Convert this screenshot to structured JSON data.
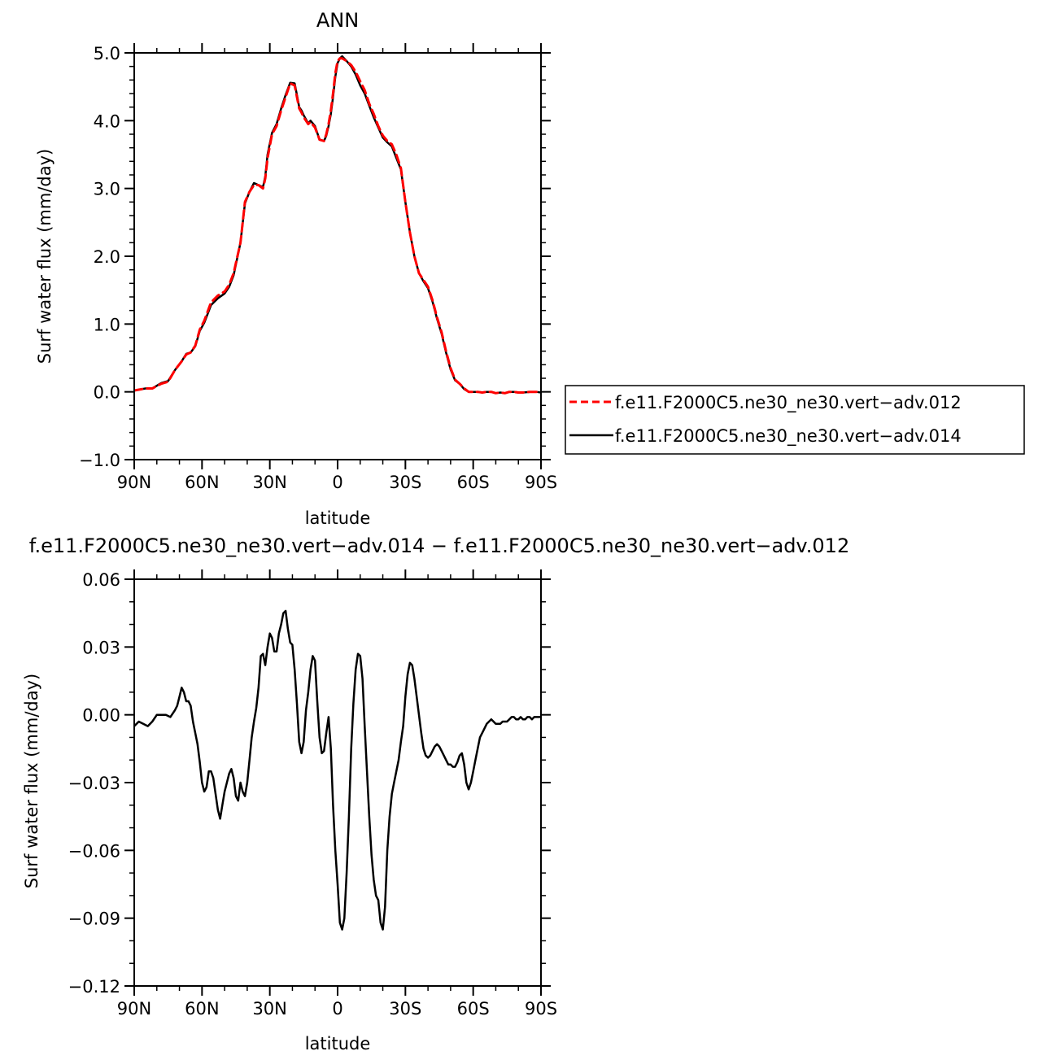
{
  "chart_data": [
    {
      "type": "line",
      "title": "ANN",
      "xlabel": "latitude",
      "ylabel": "Surf water flux (mm/day)",
      "xlim": [
        90,
        -90
      ],
      "ylim": [
        -1.0,
        5.0
      ],
      "x_tick_values": [
        90,
        60,
        30,
        0,
        -30,
        -60,
        -90
      ],
      "x_tick_labels": [
        "90N",
        "60N",
        "30N",
        "0",
        "30S",
        "60S",
        "90S"
      ],
      "y_tick_values": [
        -1.0,
        0.0,
        1.0,
        2.0,
        3.0,
        4.0,
        5.0
      ],
      "y_tick_labels": [
        "−1.0",
        "0.0",
        "1.0",
        "2.0",
        "3.0",
        "4.0",
        "5.0"
      ],
      "legend_position": "right",
      "series": [
        {
          "name": "f.e11.F2000C5.ne30_ne30.vert−adv.012",
          "color": "#ff0000",
          "dash": "dashed",
          "x": [
            90,
            85,
            82,
            78,
            75,
            72,
            69,
            67,
            65,
            63,
            61,
            59,
            56,
            53,
            50,
            48,
            46,
            43,
            41,
            39,
            37,
            35,
            33,
            32,
            31,
            29,
            27,
            25,
            23,
            21,
            19,
            18,
            17,
            16,
            15,
            14,
            13,
            12,
            10,
            8,
            6,
            5,
            4,
            3,
            2,
            1,
            0,
            -1,
            -2,
            -4,
            -6,
            -8,
            -10,
            -12,
            -14,
            -16,
            -18,
            -20,
            -22,
            -24,
            -26,
            -28,
            -30,
            -32,
            -34,
            -36,
            -38,
            -40,
            -42,
            -44,
            -46,
            -48,
            -50,
            -52,
            -54,
            -56,
            -58,
            -60,
            -62,
            -64,
            -66,
            -68,
            -70,
            -72,
            -74,
            -76,
            -78,
            -80,
            -82,
            -85,
            -88,
            -90
          ],
          "y": [
            0.02,
            0.05,
            0.05,
            0.12,
            0.15,
            0.32,
            0.45,
            0.55,
            0.58,
            0.68,
            0.92,
            1.05,
            1.32,
            1.42,
            1.48,
            1.58,
            1.75,
            2.2,
            2.8,
            2.95,
            3.05,
            3.05,
            3.0,
            3.15,
            3.45,
            3.8,
            3.92,
            4.15,
            4.35,
            4.55,
            4.52,
            4.35,
            4.18,
            4.12,
            4.05,
            4.0,
            3.95,
            3.98,
            3.9,
            3.72,
            3.7,
            3.8,
            3.95,
            4.15,
            4.4,
            4.7,
            4.88,
            4.92,
            4.92,
            4.88,
            4.82,
            4.72,
            4.58,
            4.45,
            4.25,
            4.1,
            3.92,
            3.78,
            3.7,
            3.65,
            3.5,
            3.3,
            2.8,
            2.35,
            2.0,
            1.75,
            1.65,
            1.55,
            1.35,
            1.1,
            0.88,
            0.6,
            0.35,
            0.18,
            0.12,
            0.05,
            0.0,
            0.0,
            0.0,
            -0.01,
            0.0,
            0.0,
            -0.02,
            -0.01,
            -0.02,
            0.0,
            0.0,
            -0.01,
            -0.01,
            0.0,
            0.0,
            -0.01
          ]
        },
        {
          "name": "f.e11.F2000C5.ne30_ne30.vert−adv.014",
          "color": "#000000",
          "dash": "solid",
          "x": [
            90,
            85,
            82,
            78,
            75,
            72,
            69,
            67,
            65,
            63,
            61,
            59,
            56,
            53,
            50,
            48,
            46,
            43,
            41,
            39,
            37,
            35,
            33,
            32,
            31,
            29,
            27,
            25,
            23,
            21,
            19,
            18,
            17,
            16,
            15,
            14,
            13,
            12,
            10,
            8,
            6,
            5,
            4,
            3,
            2,
            1,
            0,
            -1,
            -2,
            -4,
            -6,
            -8,
            -10,
            -12,
            -14,
            -16,
            -18,
            -20,
            -22,
            -24,
            -26,
            -28,
            -30,
            -32,
            -34,
            -36,
            -38,
            -40,
            -42,
            -44,
            -46,
            -48,
            -50,
            -52,
            -54,
            -56,
            -58,
            -60,
            -62,
            -64,
            -66,
            -68,
            -70,
            -72,
            -74,
            -76,
            -78,
            -80,
            -82,
            -85,
            -88,
            -90
          ],
          "y": [
            0.02,
            0.05,
            0.05,
            0.13,
            0.16,
            0.32,
            0.45,
            0.56,
            0.58,
            0.67,
            0.9,
            1.02,
            1.28,
            1.38,
            1.45,
            1.55,
            1.72,
            2.2,
            2.78,
            2.95,
            3.08,
            3.05,
            3.02,
            3.18,
            3.5,
            3.82,
            3.95,
            4.18,
            4.38,
            4.56,
            4.55,
            4.38,
            4.2,
            4.15,
            4.08,
            4.02,
            3.96,
            4.0,
            3.92,
            3.72,
            3.7,
            3.78,
            3.92,
            4.1,
            4.35,
            4.65,
            4.85,
            4.92,
            4.95,
            4.88,
            4.8,
            4.68,
            4.52,
            4.4,
            4.22,
            4.05,
            3.9,
            3.75,
            3.68,
            3.62,
            3.45,
            3.28,
            2.8,
            2.35,
            2.0,
            1.75,
            1.63,
            1.53,
            1.33,
            1.08,
            0.86,
            0.58,
            0.33,
            0.17,
            0.12,
            0.04,
            0.0,
            0.0,
            0.0,
            -0.01,
            0.0,
            0.0,
            -0.02,
            -0.01,
            -0.02,
            0.0,
            0.0,
            -0.01,
            -0.01,
            0.0,
            0.0,
            -0.01
          ]
        }
      ]
    },
    {
      "type": "line",
      "title": "f.e11.F2000C5.ne30_ne30.vert−adv.014 − f.e11.F2000C5.ne30_ne30.vert−adv.012",
      "xlabel": "latitude",
      "ylabel": "Surf water flux (mm/day)",
      "xlim": [
        90,
        -90
      ],
      "ylim": [
        -0.12,
        0.06
      ],
      "x_tick_values": [
        90,
        60,
        30,
        0,
        -30,
        -60,
        -90
      ],
      "x_tick_labels": [
        "90N",
        "60N",
        "30N",
        "0",
        "30S",
        "60S",
        "90S"
      ],
      "y_tick_values": [
        -0.12,
        -0.09,
        -0.06,
        -0.03,
        0.0,
        0.03,
        0.06
      ],
      "y_tick_labels": [
        "−0.12",
        "−0.09",
        "−0.06",
        "−0.03",
        "0.00",
        "0.03",
        "0.06"
      ],
      "series": [
        {
          "color": "#000000",
          "dash": "solid",
          "x": [
            90,
            88,
            86,
            84,
            82,
            80,
            78,
            76,
            74,
            72,
            71,
            70,
            69,
            68,
            67,
            66,
            65,
            64,
            63,
            62,
            61,
            60,
            59,
            58,
            57,
            56,
            55,
            54,
            53,
            52,
            51,
            50,
            49,
            48,
            47,
            46,
            45,
            44,
            43,
            42,
            41,
            40,
            39,
            38,
            37,
            36,
            35,
            34,
            33,
            32,
            31,
            30,
            29,
            28,
            27,
            26,
            25,
            24,
            23,
            22,
            21,
            20,
            19,
            18,
            17,
            16,
            15,
            14,
            13,
            12,
            11,
            10,
            9,
            8,
            7,
            6,
            5,
            4,
            3,
            2,
            1,
            0,
            -1,
            -2,
            -3,
            -4,
            -5,
            -6,
            -7,
            -8,
            -9,
            -10,
            -11,
            -12,
            -13,
            -14,
            -15,
            -16,
            -17,
            -18,
            -19,
            -20,
            -21,
            -22,
            -23,
            -24,
            -25,
            -26,
            -27,
            -28,
            -29,
            -30,
            -31,
            -32,
            -33,
            -34,
            -35,
            -36,
            -37,
            -38,
            -39,
            -40,
            -41,
            -42,
            -43,
            -44,
            -45,
            -46,
            -47,
            -48,
            -49,
            -50,
            -51,
            -52,
            -53,
            -54,
            -55,
            -56,
            -57,
            -58,
            -59,
            -60,
            -61,
            -62,
            -63,
            -64,
            -65,
            -66,
            -67,
            -68,
            -69,
            -70,
            -71,
            -72,
            -73,
            -74,
            -75,
            -76,
            -77,
            -78,
            -79,
            -80,
            -81,
            -82,
            -83,
            -84,
            -85,
            -86,
            -87,
            -88,
            -89,
            -90
          ],
          "y": [
            -0.005,
            -0.003,
            -0.004,
            -0.005,
            -0.003,
            0.0,
            0.0,
            0.0,
            -0.001,
            0.002,
            0.004,
            0.008,
            0.012,
            0.01,
            0.006,
            0.006,
            0.004,
            -0.003,
            -0.008,
            -0.013,
            -0.021,
            -0.03,
            -0.034,
            -0.032,
            -0.025,
            -0.025,
            -0.028,
            -0.035,
            -0.042,
            -0.046,
            -0.04,
            -0.034,
            -0.03,
            -0.026,
            -0.024,
            -0.028,
            -0.036,
            -0.038,
            -0.03,
            -0.034,
            -0.036,
            -0.03,
            -0.02,
            -0.01,
            -0.003,
            0.003,
            0.012,
            0.026,
            0.027,
            0.022,
            0.03,
            0.036,
            0.034,
            0.028,
            0.028,
            0.036,
            0.04,
            0.045,
            0.046,
            0.038,
            0.032,
            0.031,
            0.02,
            0.005,
            -0.012,
            -0.017,
            -0.012,
            0.002,
            0.01,
            0.02,
            0.026,
            0.024,
            0.006,
            -0.01,
            -0.017,
            -0.016,
            -0.008,
            -0.001,
            -0.015,
            -0.04,
            -0.06,
            -0.075,
            -0.092,
            -0.095,
            -0.09,
            -0.07,
            -0.045,
            -0.015,
            0.005,
            0.02,
            0.027,
            0.026,
            0.016,
            -0.005,
            -0.025,
            -0.045,
            -0.062,
            -0.073,
            -0.08,
            -0.082,
            -0.092,
            -0.095,
            -0.085,
            -0.06,
            -0.045,
            -0.035,
            -0.03,
            -0.025,
            -0.02,
            -0.012,
            -0.005,
            0.008,
            0.018,
            0.023,
            0.022,
            0.016,
            0.008,
            0.0,
            -0.008,
            -0.015,
            -0.018,
            -0.019,
            -0.018,
            -0.016,
            -0.014,
            -0.013,
            -0.014,
            -0.016,
            -0.018,
            -0.02,
            -0.022,
            -0.022,
            -0.023,
            -0.023,
            -0.021,
            -0.018,
            -0.017,
            -0.022,
            -0.03,
            -0.033,
            -0.03,
            -0.025,
            -0.02,
            -0.015,
            -0.01,
            -0.008,
            -0.006,
            -0.004,
            -0.003,
            -0.002,
            -0.003,
            -0.004,
            -0.004,
            -0.004,
            -0.003,
            -0.003,
            -0.003,
            -0.002,
            -0.001,
            -0.001,
            -0.002,
            -0.002,
            -0.001,
            -0.002,
            -0.002,
            -0.001,
            -0.001,
            -0.002,
            -0.001,
            -0.001,
            -0.001,
            -0.001
          ]
        }
      ]
    }
  ]
}
